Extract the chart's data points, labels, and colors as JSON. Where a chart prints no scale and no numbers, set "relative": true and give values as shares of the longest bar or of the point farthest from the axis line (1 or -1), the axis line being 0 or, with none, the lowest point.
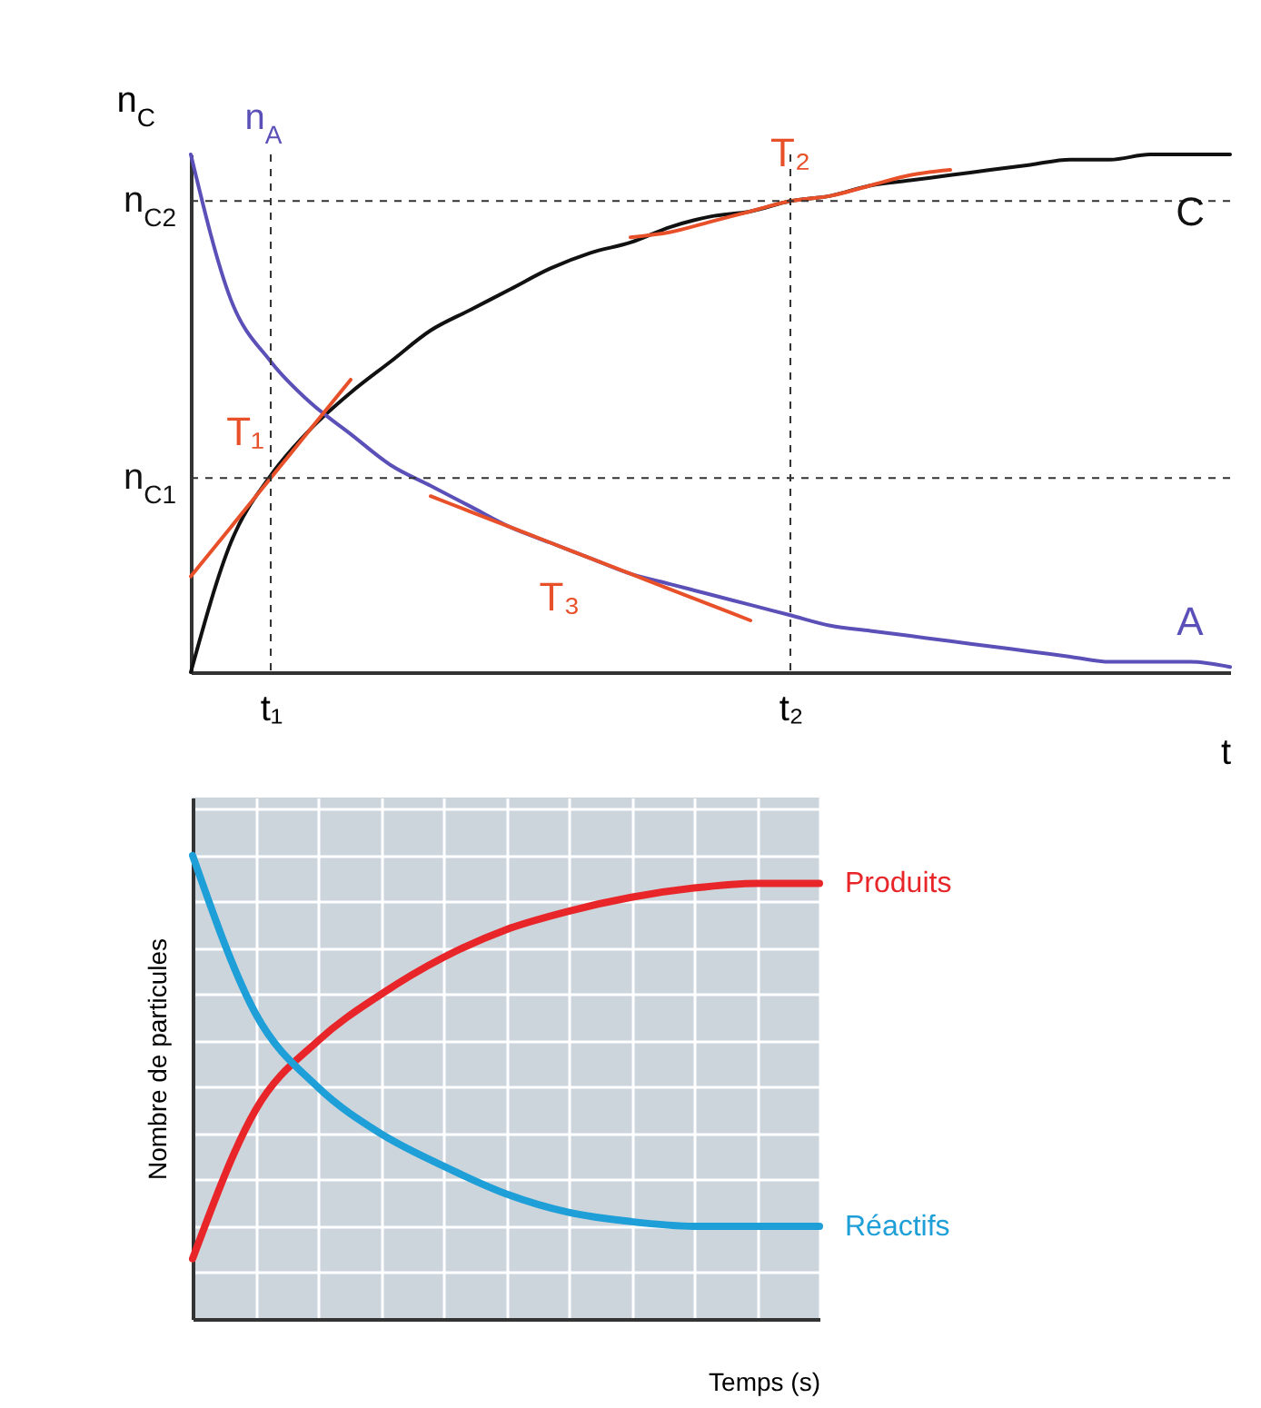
{
  "chart_data": [
    {
      "type": "line",
      "relative": true,
      "ylabel": "n$_{C}$",
      "xlabel": "t",
      "categories": [
        null,
        null,
        "t₁",
        null,
        null,
        null,
        null,
        null,
        null,
        null,
        null,
        null,
        null,
        null,
        null,
        "t₂",
        null,
        null,
        null,
        null,
        null,
        null,
        null,
        null,
        null,
        null,
        null
      ],
      "series": [
        {
          "name": "C",
          "color": "#111111",
          "values": [
            0,
            0.25,
            0.38,
            0.47,
            0.54,
            0.6,
            0.66,
            0.7,
            0.74,
            0.78,
            0.81,
            0.83,
            0.86,
            0.88,
            0.89,
            0.91,
            0.92,
            0.94,
            0.95,
            0.96,
            0.97,
            0.98,
            0.99,
            0.99,
            1,
            1,
            1
          ]
        },
        {
          "name": "A",
          "color": "#5a50b8",
          "values": [
            1,
            0.72,
            0.6,
            0.52,
            0.46,
            0.4,
            0.36,
            0.32,
            0.28,
            0.25,
            0.22,
            0.19,
            0.17,
            0.15,
            0.13,
            0.11,
            0.09,
            0.08,
            0.07,
            0.06,
            0.05,
            0.04,
            0.03,
            0.02,
            0.02,
            0.02,
            0.01
          ]
        },
        {
          "name": "T₁",
          "color": "#e8502a",
          "values": [
            0.185,
            0.28,
            0.375,
            0.47,
            0.565,
            null,
            null,
            null,
            null,
            null,
            null,
            null,
            null,
            null,
            null,
            null,
            null,
            null,
            null,
            null,
            null,
            null,
            null,
            null,
            null,
            null,
            null
          ]
        },
        {
          "name": "T₂",
          "color": "#e8502a",
          "values": [
            null,
            null,
            null,
            null,
            null,
            null,
            null,
            null,
            null,
            null,
            null,
            0.84,
            0.85,
            0.87,
            0.89,
            0.91,
            0.92,
            0.94,
            0.96,
            0.97,
            null,
            null,
            null,
            null,
            null,
            null,
            null
          ]
        },
        {
          "name": "T₃",
          "color": "#e8502a",
          "values": [
            null,
            null,
            null,
            null,
            null,
            null,
            0.34,
            0.31,
            0.28,
            0.25,
            0.22,
            0.19,
            0.16,
            0.13,
            0.1,
            null,
            null,
            null,
            null,
            null,
            null,
            null,
            null,
            null,
            null,
            null,
            null
          ]
        }
      ],
      "ref_lines": [
        {
          "axis": "y",
          "value": 0.375,
          "label": "n$_{C1}$",
          "line_style": "dashed"
        },
        {
          "axis": "y",
          "value": 0.91,
          "label": "n$_{C2}$",
          "line_style": "dashed"
        },
        {
          "axis": "x",
          "value": "t₁",
          "line_style": "dashed"
        },
        {
          "axis": "x",
          "value": "t₂",
          "line_style": "dashed"
        }
      ],
      "annotations": [
        "n$_{A}$"
      ]
    },
    {
      "type": "line",
      "relative": true,
      "grid": true,
      "xlabel": "Temps (s)",
      "ylabel": "Nombre de particules",
      "categories": [
        null,
        null,
        null,
        null,
        null,
        null,
        null,
        null,
        null,
        null,
        null
      ],
      "series": [
        {
          "name": "Produits",
          "color": "#e8262a",
          "values": [
            0.13,
            0.45,
            0.6,
            0.7,
            0.78,
            0.84,
            0.88,
            0.91,
            0.93,
            0.94,
            0.94
          ]
        },
        {
          "name": "Réactifs",
          "color": "#1e9fd8",
          "values": [
            1,
            0.66,
            0.5,
            0.4,
            0.33,
            0.27,
            0.23,
            0.21,
            0.2,
            0.2,
            0.2
          ]
        }
      ]
    }
  ]
}
